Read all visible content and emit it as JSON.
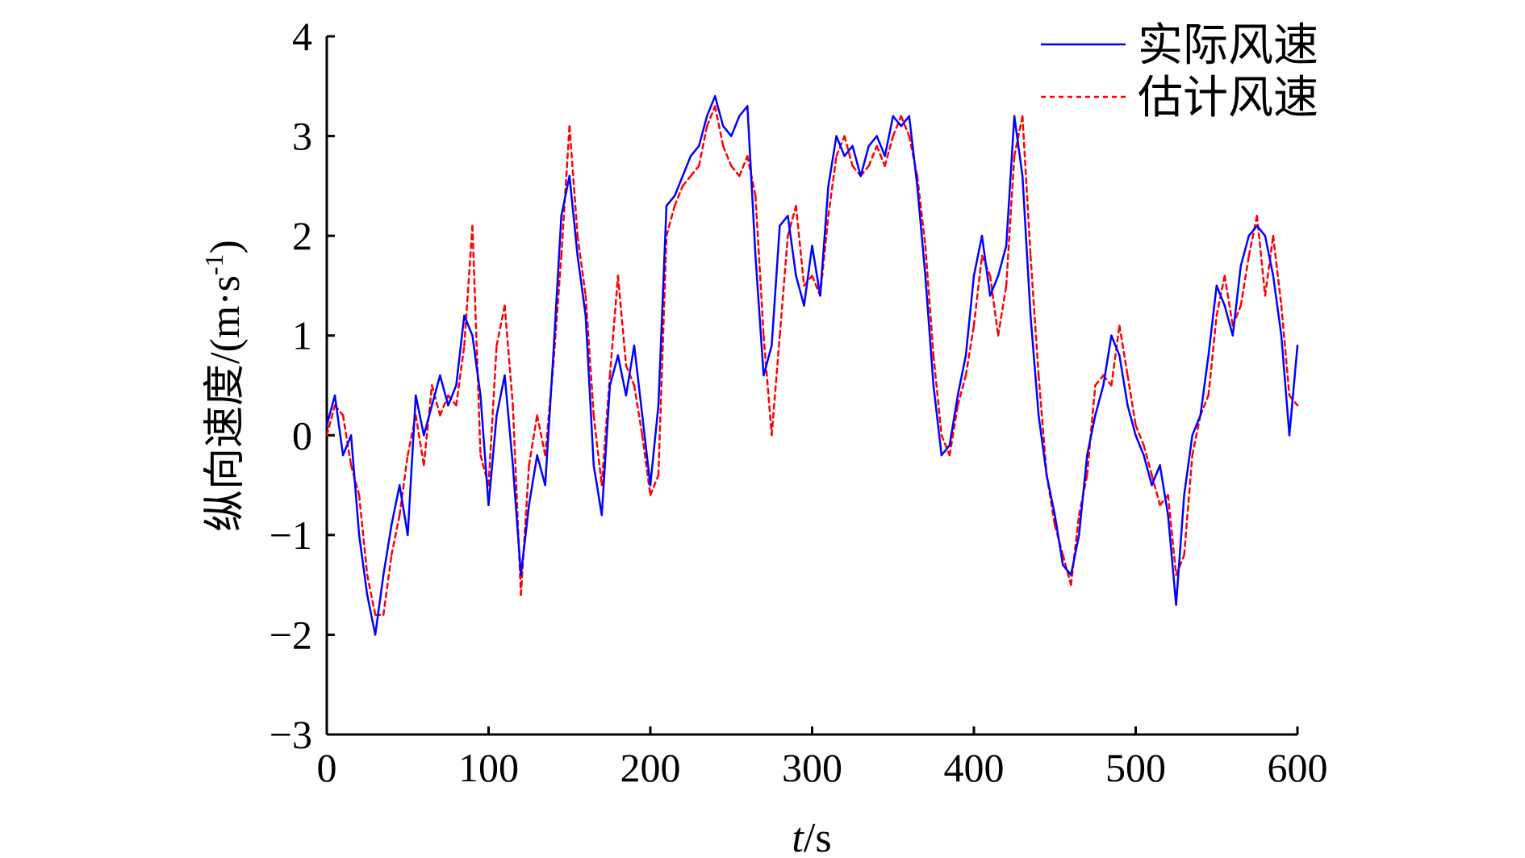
{
  "chart_data": {
    "type": "line",
    "x_unit_label": "/s",
    "x_var": "t",
    "ylabel": "纵向速度/(m·s",
    "ylabel_sup": "-1",
    "ylabel_close": ")",
    "xlim": [
      0,
      600
    ],
    "ylim": [
      -3,
      4
    ],
    "xticks": [
      0,
      100,
      200,
      300,
      400,
      500,
      600
    ],
    "yticks": [
      -3,
      -2,
      -1,
      0,
      1,
      2,
      3,
      4
    ],
    "xtick_labels": [
      "0",
      "100",
      "200",
      "300",
      "400",
      "500",
      "600"
    ],
    "ytick_labels": [
      "−3",
      "−2",
      "−1",
      "0",
      "1",
      "2",
      "3",
      "4"
    ],
    "grid": false,
    "legend_position": "top-right",
    "series": [
      {
        "name": "实际风速",
        "color": "#0000ff",
        "style": "solid",
        "x": [
          0,
          5,
          10,
          15,
          20,
          25,
          30,
          35,
          40,
          45,
          50,
          55,
          60,
          65,
          70,
          75,
          80,
          85,
          90,
          95,
          100,
          105,
          110,
          115,
          120,
          125,
          130,
          135,
          140,
          145,
          150,
          155,
          160,
          165,
          170,
          175,
          180,
          185,
          190,
          195,
          200,
          205,
          210,
          215,
          220,
          225,
          230,
          235,
          240,
          245,
          250,
          255,
          260,
          265,
          270,
          275,
          280,
          285,
          290,
          295,
          300,
          305,
          310,
          315,
          320,
          325,
          330,
          335,
          340,
          345,
          350,
          355,
          360,
          365,
          370,
          375,
          380,
          385,
          390,
          395,
          400,
          405,
          410,
          415,
          420,
          425,
          430,
          435,
          440,
          445,
          450,
          455,
          460,
          465,
          470,
          475,
          480,
          485,
          490,
          495,
          500,
          505,
          510,
          515,
          520,
          525,
          530,
          535,
          540,
          545,
          550,
          555,
          560,
          565,
          570,
          575,
          580,
          585,
          590,
          595,
          600
        ],
        "y": [
          0.1,
          0.4,
          -0.2,
          0.0,
          -1.0,
          -1.6,
          -2.0,
          -1.4,
          -0.9,
          -0.5,
          -1.0,
          0.4,
          0.0,
          0.3,
          0.6,
          0.3,
          0.5,
          1.2,
          1.0,
          0.4,
          -0.7,
          0.2,
          0.6,
          -0.3,
          -1.4,
          -0.7,
          -0.2,
          -0.5,
          0.8,
          2.2,
          2.6,
          1.8,
          1.2,
          -0.3,
          -0.8,
          0.5,
          0.8,
          0.4,
          0.9,
          0.2,
          -0.5,
          0.3,
          2.3,
          2.4,
          2.6,
          2.8,
          2.9,
          3.2,
          3.4,
          3.1,
          3.0,
          3.2,
          3.3,
          1.8,
          0.6,
          0.9,
          2.1,
          2.2,
          1.6,
          1.3,
          1.9,
          1.4,
          2.5,
          3.0,
          2.8,
          2.9,
          2.6,
          2.9,
          3.0,
          2.8,
          3.2,
          3.1,
          3.2,
          2.5,
          1.6,
          0.5,
          -0.2,
          -0.1,
          0.4,
          0.8,
          1.6,
          2.0,
          1.4,
          1.6,
          1.9,
          3.2,
          2.6,
          1.2,
          0.2,
          -0.4,
          -0.8,
          -1.3,
          -1.4,
          -1.0,
          -0.2,
          0.2,
          0.5,
          1.0,
          0.8,
          0.3,
          0.0,
          -0.2,
          -0.5,
          -0.3,
          -0.8,
          -1.7,
          -0.6,
          0.0,
          0.2,
          0.8,
          1.5,
          1.3,
          1.0,
          1.7,
          2.0,
          2.1,
          2.0,
          1.6,
          1.0,
          0.0,
          0.9
        ]
      },
      {
        "name": "估计风速",
        "color": "#ff0000",
        "style": "dashed",
        "x": [
          0,
          5,
          10,
          15,
          20,
          25,
          30,
          35,
          40,
          45,
          50,
          55,
          60,
          65,
          70,
          75,
          80,
          85,
          90,
          95,
          100,
          105,
          110,
          115,
          120,
          125,
          130,
          135,
          140,
          145,
          150,
          155,
          160,
          165,
          170,
          175,
          180,
          185,
          190,
          195,
          200,
          205,
          210,
          215,
          220,
          225,
          230,
          235,
          240,
          245,
          250,
          255,
          260,
          265,
          270,
          275,
          280,
          285,
          290,
          295,
          300,
          305,
          310,
          315,
          320,
          325,
          330,
          335,
          340,
          345,
          350,
          355,
          360,
          365,
          370,
          375,
          380,
          385,
          390,
          395,
          400,
          405,
          410,
          415,
          420,
          425,
          430,
          435,
          440,
          445,
          450,
          455,
          460,
          465,
          470,
          475,
          480,
          485,
          490,
          495,
          500,
          505,
          510,
          515,
          520,
          525,
          530,
          535,
          540,
          545,
          550,
          555,
          560,
          565,
          570,
          575,
          580,
          585,
          590,
          595,
          600
        ],
        "y": [
          0.0,
          0.3,
          0.2,
          -0.3,
          -0.6,
          -1.4,
          -1.8,
          -1.8,
          -1.2,
          -0.8,
          -0.2,
          0.2,
          -0.3,
          0.5,
          0.2,
          0.4,
          0.3,
          0.9,
          2.1,
          -0.2,
          -0.5,
          0.9,
          1.3,
          0.3,
          -1.6,
          -0.3,
          0.2,
          -0.2,
          0.7,
          1.8,
          3.1,
          2.0,
          1.4,
          0.2,
          -0.5,
          0.6,
          1.6,
          0.7,
          0.5,
          0.0,
          -0.6,
          -0.4,
          2.0,
          2.3,
          2.5,
          2.6,
          2.7,
          3.1,
          3.3,
          2.9,
          2.7,
          2.6,
          2.8,
          2.4,
          1.0,
          0.0,
          1.0,
          2.0,
          2.3,
          1.5,
          1.6,
          1.4,
          2.2,
          2.8,
          3.0,
          2.7,
          2.6,
          2.7,
          2.9,
          2.7,
          3.0,
          3.2,
          3.0,
          2.6,
          1.9,
          0.8,
          0.0,
          -0.2,
          0.3,
          0.6,
          1.1,
          1.8,
          1.6,
          1.0,
          1.5,
          2.8,
          3.2,
          1.8,
          0.6,
          -0.4,
          -0.9,
          -1.2,
          -1.5,
          -0.8,
          -0.4,
          0.5,
          0.6,
          0.5,
          1.1,
          0.6,
          0.1,
          -0.1,
          -0.4,
          -0.7,
          -0.6,
          -1.4,
          -1.2,
          -0.2,
          0.2,
          0.4,
          1.2,
          1.6,
          1.1,
          1.3,
          1.8,
          2.2,
          1.4,
          2.0,
          1.3,
          0.4,
          0.3
        ]
      }
    ]
  }
}
